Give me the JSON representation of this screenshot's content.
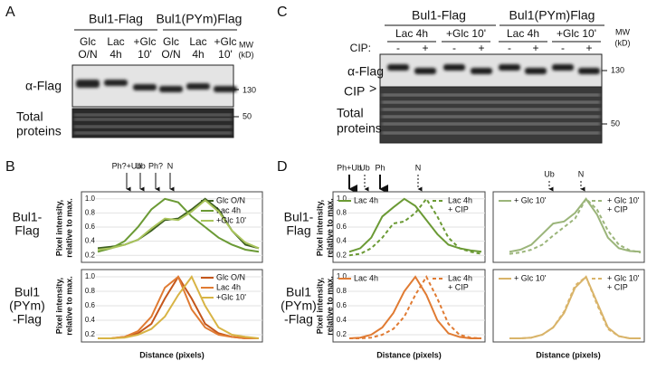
{
  "panels": {
    "a": {
      "label": "A",
      "constructs": [
        "Bul1-Flag",
        "Bul1(PYm)Flag"
      ],
      "lanes": [
        {
          "text": [
            "Glc",
            "O/N"
          ],
          "color": "#3d5f20"
        },
        {
          "text": [
            "Lac",
            "4h"
          ],
          "color": "#6b9a35"
        },
        {
          "text": [
            "+Glc",
            "10'"
          ],
          "color": "#a9c45c"
        },
        {
          "text": [
            "Glc",
            "O/N"
          ],
          "color": "#c4561b"
        },
        {
          "text": [
            "Lac",
            "4h"
          ],
          "color": "#e07b33"
        },
        {
          "text": [
            "+Glc",
            "10'"
          ],
          "color": "#d8b445"
        }
      ],
      "mw": [
        "MW",
        "(kD)"
      ],
      "flag_label": "α-Flag",
      "total_label": [
        "Total",
        "proteins"
      ],
      "markers": [
        130,
        50
      ]
    },
    "c": {
      "label": "C",
      "constructs": [
        "Bul1-Flag",
        "Bul1(PYm)Flag"
      ],
      "lanes": [
        {
          "text": "Lac 4h",
          "color": "#6b9a35"
        },
        {
          "text": "+Glc 10'",
          "color": "#a9c45c"
        },
        {
          "text": "Lac 4h",
          "color": "#e07b33"
        },
        {
          "text": "+Glc 10'",
          "color": "#d8b445"
        }
      ],
      "cip_label": "CIP:",
      "cip_signs": [
        "-",
        "+",
        "-",
        "+",
        "-",
        "+",
        "-",
        "+"
      ],
      "mw": [
        "MW",
        "(kD)"
      ],
      "flag_label": "α-Flag",
      "cip_band": "CIP",
      "cip_marker": ">",
      "total_label": [
        "Total",
        "proteins"
      ],
      "markers": [
        130,
        50
      ]
    },
    "b": {
      "label": "B",
      "arrows": [
        "Ph?+Ub",
        "Ub",
        "Ph?",
        "N"
      ],
      "rows": [
        [
          "Bul1-",
          "Flag"
        ],
        [
          "Bul1",
          "(PYm)",
          "-Flag"
        ]
      ],
      "y_label": [
        "Pixel intensity,",
        "relative to max."
      ],
      "x_label": "Distance (pixels)",
      "plots": [
        {
          "ylim": [
            0.1,
            1.1
          ],
          "yticks": [
            0.2,
            0.4,
            0.6,
            0.8,
            {
              "value": 1,
              "label": "1.0"
            }
          ],
          "grid": true,
          "series": [
            {
              "name": [
                "Glc O/N"
              ],
              "color": "#3d5f20",
              "dash": false,
              "values": [
                0.3,
                0.32,
                0.35,
                0.42,
                0.55,
                0.7,
                0.72,
                0.85,
                1.0,
                0.85,
                0.55,
                0.35,
                0.3
              ]
            },
            {
              "name": [
                "Lac 4h"
              ],
              "color": "#6b9a35",
              "dash": false,
              "values": [
                0.25,
                0.3,
                0.4,
                0.6,
                0.85,
                1.0,
                0.95,
                0.75,
                0.6,
                0.45,
                0.35,
                0.28,
                0.25
              ]
            },
            {
              "name": [
                "+Glc 10'"
              ],
              "color": "#a9c45c",
              "dash": false,
              "values": [
                0.28,
                0.3,
                0.35,
                0.42,
                0.58,
                0.72,
                0.7,
                0.82,
                0.98,
                0.82,
                0.55,
                0.38,
                0.3
              ]
            }
          ]
        },
        {
          "ylim": [
            0.1,
            1.1
          ],
          "yticks": [
            0.2,
            0.4,
            0.6,
            0.8,
            {
              "value": 1,
              "label": "1.0"
            }
          ],
          "grid": true,
          "series": [
            {
              "name": [
                "Glc O/N"
              ],
              "color": "#c4561b",
              "dash": false,
              "values": [
                0.15,
                0.15,
                0.17,
                0.22,
                0.35,
                0.7,
                1.0,
                0.7,
                0.35,
                0.22,
                0.17,
                0.15,
                0.15
              ]
            },
            {
              "name": [
                "Lac 4h"
              ],
              "color": "#e07b33",
              "dash": false,
              "values": [
                0.15,
                0.15,
                0.17,
                0.25,
                0.45,
                0.85,
                1.0,
                0.55,
                0.3,
                0.2,
                0.17,
                0.15,
                0.15
              ]
            },
            {
              "name": [
                "+Glc 10'"
              ],
              "color": "#d8b445",
              "dash": false,
              "values": [
                0.15,
                0.15,
                0.16,
                0.2,
                0.28,
                0.45,
                0.75,
                1.0,
                0.6,
                0.3,
                0.2,
                0.17,
                0.15
              ]
            }
          ]
        }
      ]
    },
    "d": {
      "label": "D",
      "arrows_left": [
        "Ph+Ub",
        "Ub",
        "Ph",
        "N"
      ],
      "arrows_right": [
        "Ub",
        "N"
      ],
      "rows": [
        [
          "Bul1-",
          "Flag"
        ],
        [
          "Bul1",
          "(PYm)",
          "-Flag"
        ]
      ],
      "y_label": [
        "Pixel intensity,",
        "relative to max."
      ],
      "x_label": "Distance (pixels)",
      "plots": [
        {
          "ylim": [
            0.1,
            1.1
          ],
          "yticks": [
            0.2,
            0.4,
            0.6,
            0.8,
            {
              "value": 1,
              "label": "1.0"
            }
          ],
          "grid": true,
          "series": [
            {
              "name": [
                "Lac 4h"
              ],
              "color": "#6b9a35",
              "dash": false,
              "values": [
                0.25,
                0.3,
                0.45,
                0.75,
                0.88,
                1.0,
                0.9,
                0.7,
                0.5,
                0.35,
                0.3,
                0.27,
                0.25
              ]
            },
            {
              "name": [
                "Lac 4h",
                "+ CIP"
              ],
              "color": "#6b9a35",
              "dash": true,
              "values": [
                0.2,
                0.22,
                0.3,
                0.45,
                0.65,
                0.68,
                0.8,
                1.0,
                0.75,
                0.45,
                0.3,
                0.25,
                0.22
              ]
            }
          ]
        },
        {
          "ylim": [
            0.1,
            1.1
          ],
          "yticks": [],
          "grid": true,
          "series": [
            {
              "name": [
                "+ Glc 10'"
              ],
              "color": "#9bb57a",
              "dash": false,
              "values": [
                0.25,
                0.28,
                0.35,
                0.5,
                0.65,
                0.68,
                0.8,
                1.0,
                0.78,
                0.45,
                0.3,
                0.26,
                0.25
              ]
            },
            {
              "name": [
                "+ Glc 10'",
                "+ CIP"
              ],
              "color": "#9bb57a",
              "dash": true,
              "values": [
                0.22,
                0.24,
                0.28,
                0.35,
                0.48,
                0.6,
                0.72,
                1.0,
                0.85,
                0.55,
                0.35,
                0.27,
                0.24
              ]
            }
          ]
        },
        {
          "ylim": [
            0.1,
            1.1
          ],
          "yticks": [
            0.2,
            0.4,
            0.6,
            0.8,
            {
              "value": 1,
              "label": "1.0"
            }
          ],
          "grid": true,
          "series": [
            {
              "name": [
                "Lac 4h"
              ],
              "color": "#e07b33",
              "dash": false,
              "values": [
                0.15,
                0.16,
                0.2,
                0.3,
                0.5,
                0.8,
                1.0,
                0.75,
                0.4,
                0.22,
                0.17,
                0.15,
                0.15
              ]
            },
            {
              "name": [
                "Lac 4h",
                "+ CIP"
              ],
              "color": "#e07b33",
              "dash": true,
              "values": [
                0.15,
                0.15,
                0.16,
                0.2,
                0.28,
                0.45,
                0.75,
                1.0,
                0.7,
                0.35,
                0.2,
                0.16,
                0.15
              ]
            }
          ]
        },
        {
          "ylim": [
            0.1,
            1.1
          ],
          "yticks": [],
          "grid": true,
          "series": [
            {
              "name": [
                "+ Glc 10'"
              ],
              "color": "#d9b46a",
              "dash": false,
              "values": [
                0.15,
                0.15,
                0.16,
                0.2,
                0.3,
                0.5,
                0.85,
                1.0,
                0.65,
                0.3,
                0.18,
                0.15,
                0.15
              ]
            },
            {
              "name": [
                "+ Glc 10'",
                "+ CIP"
              ],
              "color": "#d9b46a",
              "dash": true,
              "values": [
                0.15,
                0.15,
                0.16,
                0.2,
                0.3,
                0.52,
                0.88,
                1.0,
                0.62,
                0.28,
                0.18,
                0.15,
                0.15
              ]
            }
          ]
        }
      ]
    }
  }
}
